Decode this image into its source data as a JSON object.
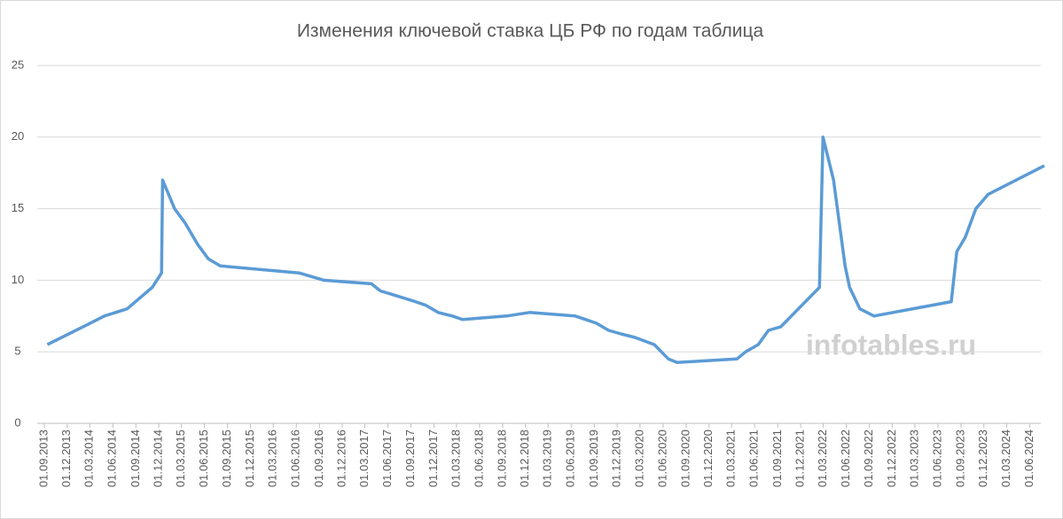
{
  "chart_data": {
    "type": "line",
    "title": "Изменения ключевой ставка ЦБ РФ по годам таблица",
    "watermark": "infotables.ru",
    "color": "#5b9bd5",
    "grid": true,
    "x": [
      "13.09.2013",
      "03.03.2014",
      "28.04.2014",
      "28.07.2014",
      "05.11.2014",
      "12.12.2014",
      "16.12.2014",
      "02.02.2015",
      "16.03.2015",
      "05.05.2015",
      "16.06.2015",
      "03.08.2015",
      "14.06.2016",
      "19.09.2016",
      "27.03.2017",
      "02.05.2017",
      "19.06.2017",
      "18.09.2017",
      "30.10.2017",
      "18.12.2017",
      "12.02.2018",
      "26.03.2018",
      "17.09.2018",
      "17.12.2018",
      "17.06.2019",
      "29.07.2019",
      "09.09.2019",
      "28.10.2019",
      "16.12.2019",
      "10.02.2020",
      "27.04.2020",
      "22.06.2020",
      "27.07.2020",
      "22.03.2021",
      "26.04.2021",
      "15.06.2021",
      "26.07.2021",
      "13.09.2021",
      "25.10.2021",
      "20.12.2021",
      "14.02.2022",
      "28.02.2022",
      "11.04.2022",
      "04.05.2022",
      "27.05.2022",
      "14.06.2022",
      "25.07.2022",
      "19.09.2022",
      "24.07.2023",
      "15.08.2023",
      "18.09.2023",
      "30.10.2023",
      "18.12.2023",
      "29.07.2024"
    ],
    "values": [
      5.5,
      7.0,
      7.5,
      8.0,
      9.5,
      10.5,
      17.0,
      15.0,
      14.0,
      12.5,
      11.5,
      11.0,
      10.5,
      10.0,
      9.75,
      9.25,
      9.0,
      8.5,
      8.25,
      7.75,
      7.5,
      7.25,
      7.5,
      7.75,
      7.5,
      7.25,
      7.0,
      6.5,
      6.25,
      6.0,
      5.5,
      4.5,
      4.25,
      4.5,
      5.0,
      5.5,
      6.5,
      6.75,
      7.5,
      8.5,
      9.5,
      20.0,
      17.0,
      14.0,
      11.0,
      9.5,
      8.0,
      7.5,
      8.5,
      12.0,
      13.0,
      15.0,
      16.0,
      18.0
    ],
    "xlim": [
      "01.09.2013",
      "29.07.2024"
    ],
    "xticks": [
      "01.09.2013",
      "01.12.2013",
      "01.03.2014",
      "01.06.2014",
      "01.09.2014",
      "01.12.2014",
      "01.03.2015",
      "01.06.2015",
      "01.09.2015",
      "01.12.2015",
      "01.03.2016",
      "01.06.2016",
      "01.09.2016",
      "01.12.2016",
      "01.03.2017",
      "01.06.2017",
      "01.09.2017",
      "01.12.2017",
      "01.03.2018",
      "01.06.2018",
      "01.09.2018",
      "01.12.2018",
      "01.03.2019",
      "01.06.2019",
      "01.09.2019",
      "01.12.2019",
      "01.03.2020",
      "01.06.2020",
      "01.09.2020",
      "01.12.2020",
      "01.03.2021",
      "01.06.2021",
      "01.09.2021",
      "01.12.2021",
      "01.03.2022",
      "01.06.2022",
      "01.09.2022",
      "01.12.2022",
      "01.03.2023",
      "01.06.2023",
      "01.09.2023",
      "01.12.2023",
      "01.03.2024",
      "01.06.2024"
    ],
    "ylim": [
      0,
      25
    ],
    "yticks": [
      0,
      5,
      10,
      15,
      20,
      25
    ]
  }
}
